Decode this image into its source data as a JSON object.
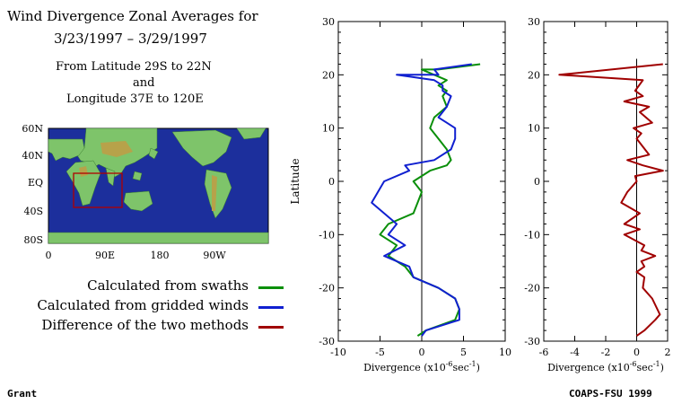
{
  "header": {
    "title_line1": "Wind Divergence Zonal Averages for",
    "title_line2": "3/23/1997 – 3/29/1997",
    "region_line1": "From Latitude 29S to 22N",
    "region_line2": "and",
    "region_line3": "Longitude 37E to 120E"
  },
  "map": {
    "lat_labels": [
      "60N",
      "40N",
      "EQ",
      "40S",
      "80S"
    ],
    "lon_labels": [
      "0",
      "90E",
      "180",
      "90W"
    ],
    "ocean_color": "#1c2f9c",
    "region_box_color": "#b00000"
  },
  "legend": {
    "items": [
      {
        "label": "Calculated from swaths",
        "color": "#0a8f0a"
      },
      {
        "label": "Calculated from gridded winds",
        "color": "#1020d0"
      },
      {
        "label": "Difference of the two methods",
        "color": "#a00000"
      }
    ]
  },
  "footer": {
    "left": "Grant",
    "right": "COAPS-FSU 1999"
  },
  "chart_data": [
    {
      "type": "line",
      "ylabel": "Latitude",
      "xlabel_prefix": "Divergence (x10",
      "xlabel_exp1": "-6",
      "xlabel_mid": "sec",
      "xlabel_exp2": "-1",
      "xlabel_suffix": ")",
      "xlim": [
        -10,
        10
      ],
      "ylim": [
        -30,
        30
      ],
      "xticks": [
        -10,
        -5,
        0,
        5,
        10
      ],
      "yticks": [
        -30,
        -20,
        -10,
        0,
        10,
        20,
        30
      ],
      "series": [
        {
          "color": "#0a8f0a",
          "x": [
            -0.5,
            0.5,
            4,
            4.5,
            4,
            2,
            -1,
            -2,
            -4,
            -3,
            -5,
            -4,
            -1,
            -0.5,
            0,
            -1,
            1,
            3,
            3.5,
            3,
            2,
            1,
            1.5,
            3,
            2.5,
            3,
            2,
            3,
            0,
            2,
            7
          ],
          "y": [
            -29,
            -28,
            -26,
            -24,
            -22,
            -20,
            -18,
            -16,
            -14,
            -12,
            -10,
            -8,
            -6,
            -4,
            -2,
            0,
            2,
            3,
            4,
            6,
            8,
            10,
            12,
            14,
            16,
            17,
            18,
            19,
            21,
            21,
            22
          ]
        },
        {
          "color": "#1020d0",
          "x": [
            0,
            0.5,
            4.5,
            4.5,
            4,
            2,
            -1,
            -1.5,
            -4.5,
            -2,
            -4,
            -3,
            -6,
            -4.5,
            -1.5,
            -2,
            1.5,
            3.5,
            4,
            4,
            3,
            2,
            3,
            3.5,
            2.5,
            2.5,
            1.5,
            -3,
            2,
            1.5,
            6
          ],
          "y": [
            -29,
            -28,
            -26,
            -24,
            -22,
            -20,
            -18,
            -16,
            -14,
            -12,
            -10,
            -8,
            -4,
            0,
            2,
            3,
            4,
            6,
            8,
            10,
            11,
            12,
            14,
            16,
            17,
            18,
            19,
            20,
            20,
            21,
            22
          ]
        }
      ]
    },
    {
      "type": "line",
      "xlabel_prefix": "Divergence (x10",
      "xlabel_exp1": "-6",
      "xlabel_mid": "sec",
      "xlabel_exp2": "-1",
      "xlabel_suffix": ")",
      "xlim": [
        -6,
        2
      ],
      "ylim": [
        -30,
        30
      ],
      "xticks": [
        -6,
        -4,
        -2,
        0,
        2
      ],
      "yticks": [
        -30,
        -20,
        -10,
        0,
        10,
        20,
        30
      ],
      "series": [
        {
          "color": "#a00000",
          "x": [
            0,
            0.5,
            1.2,
            1.5,
            1,
            0.4,
            0.5,
            0,
            0.5,
            0.3,
            1.2,
            0.3,
            0.5,
            -0.8,
            0.2,
            -0.8,
            0.2,
            -1,
            -0.6,
            0,
            -0.1,
            1.7,
            0.4,
            -0.6,
            0.8,
            0,
            0.3,
            -0.2,
            1,
            0.2,
            0.8,
            -0.8,
            0.4,
            -0.1,
            0.4,
            -5,
            1.7
          ],
          "y": [
            -29,
            -28,
            -26,
            -25,
            -22,
            -20,
            -18,
            -17,
            -16,
            -15,
            -14,
            -13,
            -12,
            -10,
            -9,
            -8,
            -6,
            -4,
            -2,
            0,
            1,
            2,
            3,
            4,
            5,
            8,
            9,
            10,
            11,
            13,
            14,
            15,
            16,
            17,
            19,
            20,
            22
          ]
        }
      ]
    }
  ]
}
